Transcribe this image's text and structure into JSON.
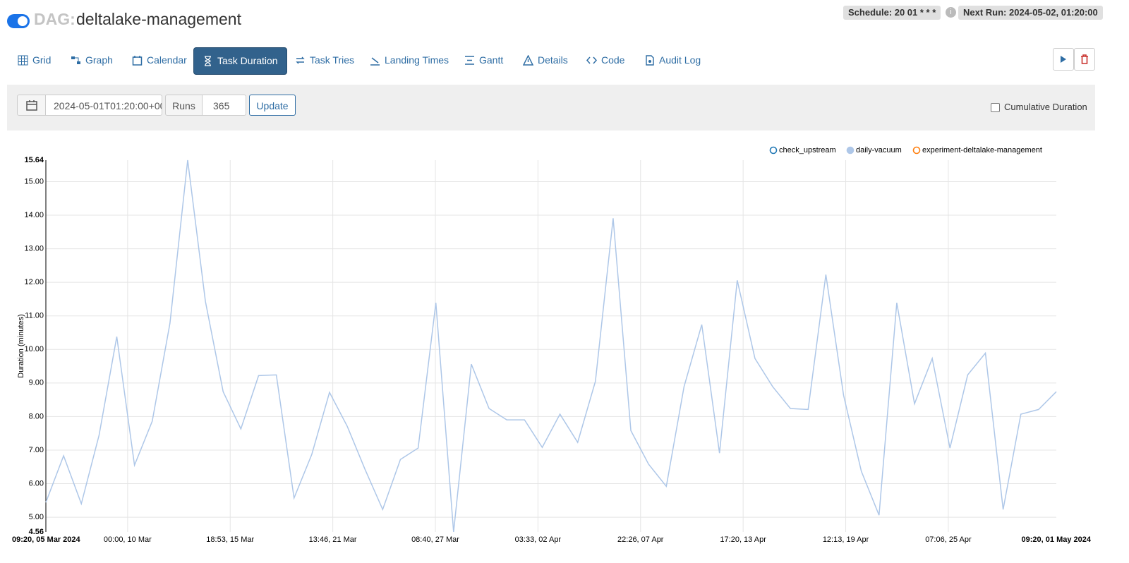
{
  "header": {
    "dag_label": "DAG:",
    "dag_id": "deltalake-management",
    "schedule": "Schedule: 20 01 * * *",
    "next_run": "Next Run: 2024-05-02, 01:20:00"
  },
  "tabs": [
    "Grid",
    "Graph",
    "Calendar",
    "Task Duration",
    "Task Tries",
    "Landing Times",
    "Gantt",
    "Details",
    "Code",
    "Audit Log"
  ],
  "controls": {
    "base_date": "2024-05-01T01:20:00+00",
    "runs_label": "Runs",
    "runs_value": "365",
    "update_button": "Update",
    "cumulative_label": "Cumulative Duration"
  },
  "chart_data": {
    "type": "line",
    "y_label": "Duration (minutes)",
    "x": [
      "2024-03-05T09:20",
      "2024-03-06T09:20",
      "2024-03-07T09:20",
      "2024-03-08T09:20",
      "2024-03-09T09:20",
      "2024-03-10T09:20",
      "2024-03-11T09:20",
      "2024-03-12T09:20",
      "2024-03-13T09:20",
      "2024-03-14T09:20",
      "2024-03-15T09:20",
      "2024-03-16T09:20",
      "2024-03-17T09:20",
      "2024-03-18T09:20",
      "2024-03-19T09:20",
      "2024-03-20T09:20",
      "2024-03-21T09:20",
      "2024-03-22T09:20",
      "2024-03-23T09:20",
      "2024-03-24T09:20",
      "2024-03-25T09:20",
      "2024-03-26T09:20",
      "2024-03-27T09:20",
      "2024-03-28T09:20",
      "2024-03-29T09:20",
      "2024-03-30T09:20",
      "2024-03-31T09:20",
      "2024-04-01T09:20",
      "2024-04-02T09:20",
      "2024-04-03T09:20",
      "2024-04-04T09:20",
      "2024-04-05T09:20",
      "2024-04-06T09:20",
      "2024-04-07T09:20",
      "2024-04-08T09:20",
      "2024-04-09T09:20",
      "2024-04-10T09:20",
      "2024-04-11T09:20",
      "2024-04-12T09:20",
      "2024-04-13T09:20",
      "2024-04-14T09:20",
      "2024-04-15T09:20",
      "2024-04-16T09:20",
      "2024-04-17T09:20",
      "2024-04-18T09:20",
      "2024-04-19T09:20",
      "2024-04-20T09:20",
      "2024-04-21T09:20",
      "2024-04-22T09:20",
      "2024-04-23T09:20",
      "2024-04-24T09:20",
      "2024-04-25T09:20",
      "2024-04-26T09:20",
      "2024-04-27T09:20",
      "2024-04-28T09:20",
      "2024-04-29T09:20",
      "2024-04-30T09:20",
      "2024-05-01T09:20"
    ],
    "series": [
      {
        "name": "check_upstream",
        "color": "#1f77b4",
        "disabled": true,
        "values": [
          null,
          null,
          null,
          null,
          null,
          null,
          null,
          null,
          null,
          null,
          null,
          null,
          null,
          null,
          null,
          null,
          null,
          null,
          null,
          null,
          null,
          null,
          null,
          null,
          null,
          null,
          null,
          null,
          null,
          null,
          null,
          null,
          null,
          null,
          null,
          null,
          null,
          null,
          null,
          null,
          null,
          null,
          null,
          null,
          null,
          null,
          null,
          null,
          null,
          null,
          null,
          null,
          null,
          null,
          null,
          null,
          null,
          null
        ]
      },
      {
        "name": "daily-vacuum",
        "color": "#aec7e8",
        "disabled": false,
        "values": [
          5.44,
          6.83,
          5.4,
          7.44,
          10.38,
          6.55,
          7.86,
          10.78,
          15.64,
          11.43,
          8.74,
          7.63,
          9.22,
          9.24,
          5.57,
          6.87,
          8.72,
          7.71,
          6.43,
          5.23,
          6.72,
          7.06,
          11.39,
          4.56,
          9.56,
          8.24,
          7.9,
          7.9,
          7.08,
          8.07,
          7.23,
          9.05,
          13.91,
          7.58,
          6.58,
          5.92,
          8.89,
          10.74,
          6.91,
          12.06,
          9.73,
          8.89,
          8.24,
          8.21,
          12.23,
          8.63,
          6.37,
          5.06,
          11.39,
          8.38,
          9.73,
          7.06,
          9.24,
          9.89,
          5.23,
          8.07,
          8.21,
          8.74
        ]
      },
      {
        "name": "experiment-deltalake-management",
        "color": "#ff7f0e",
        "disabled": true,
        "values": [
          null,
          null,
          null,
          null,
          null,
          null,
          null,
          null,
          null,
          null,
          null,
          null,
          null,
          null,
          null,
          null,
          null,
          null,
          null,
          null,
          null,
          null,
          null,
          null,
          null,
          null,
          null,
          null,
          null,
          null,
          null,
          null,
          null,
          null,
          null,
          null,
          null,
          null,
          null,
          null,
          null,
          null,
          null,
          null,
          null,
          null,
          null,
          null,
          null,
          null,
          null,
          null,
          null,
          null,
          null,
          null,
          null,
          null
        ]
      }
    ],
    "xlim": [
      "2024-03-05T09:20",
      "2024-05-01T09:20"
    ],
    "xticks": [
      {
        "value": "2024-03-05T09:20",
        "label": "09:20, 05 Mar 2024"
      },
      {
        "value": "2024-03-10T00:00",
        "label": "00:00, 10 Mar"
      },
      {
        "value": "2024-03-15T18:53",
        "label": "18:53, 15 Mar"
      },
      {
        "value": "2024-03-21T13:46",
        "label": "13:46, 21 Mar"
      },
      {
        "value": "2024-03-27T08:40",
        "label": "08:40, 27 Mar"
      },
      {
        "value": "2024-04-02T03:33",
        "label": "03:33, 02 Apr"
      },
      {
        "value": "2024-04-07T22:26",
        "label": "22:26, 07 Apr"
      },
      {
        "value": "2024-04-13T17:20",
        "label": "17:20, 13 Apr"
      },
      {
        "value": "2024-04-19T12:13",
        "label": "12:13, 19 Apr"
      },
      {
        "value": "2024-04-25T07:06",
        "label": "07:06, 25 Apr"
      },
      {
        "value": "2024-05-01T09:20",
        "label": "09:20, 01 May 2024"
      }
    ],
    "ylim": [
      4.56,
      15.64
    ],
    "yticks": [
      4.56,
      {
        "value": 5,
        "label": "5.00"
      },
      {
        "value": 6,
        "label": "6.00"
      },
      {
        "value": 7,
        "label": "7.00"
      },
      {
        "value": 8,
        "label": "8.00"
      },
      {
        "value": 9,
        "label": "9.00"
      },
      {
        "value": 10,
        "label": "10.00"
      },
      {
        "value": 11,
        "label": "11.00"
      },
      {
        "value": 12,
        "label": "12.00"
      },
      {
        "value": 13,
        "label": "13.00"
      },
      {
        "value": 14,
        "label": "14.00"
      },
      {
        "value": 15,
        "label": "15.00"
      },
      15.64
    ],
    "grid": true
  }
}
